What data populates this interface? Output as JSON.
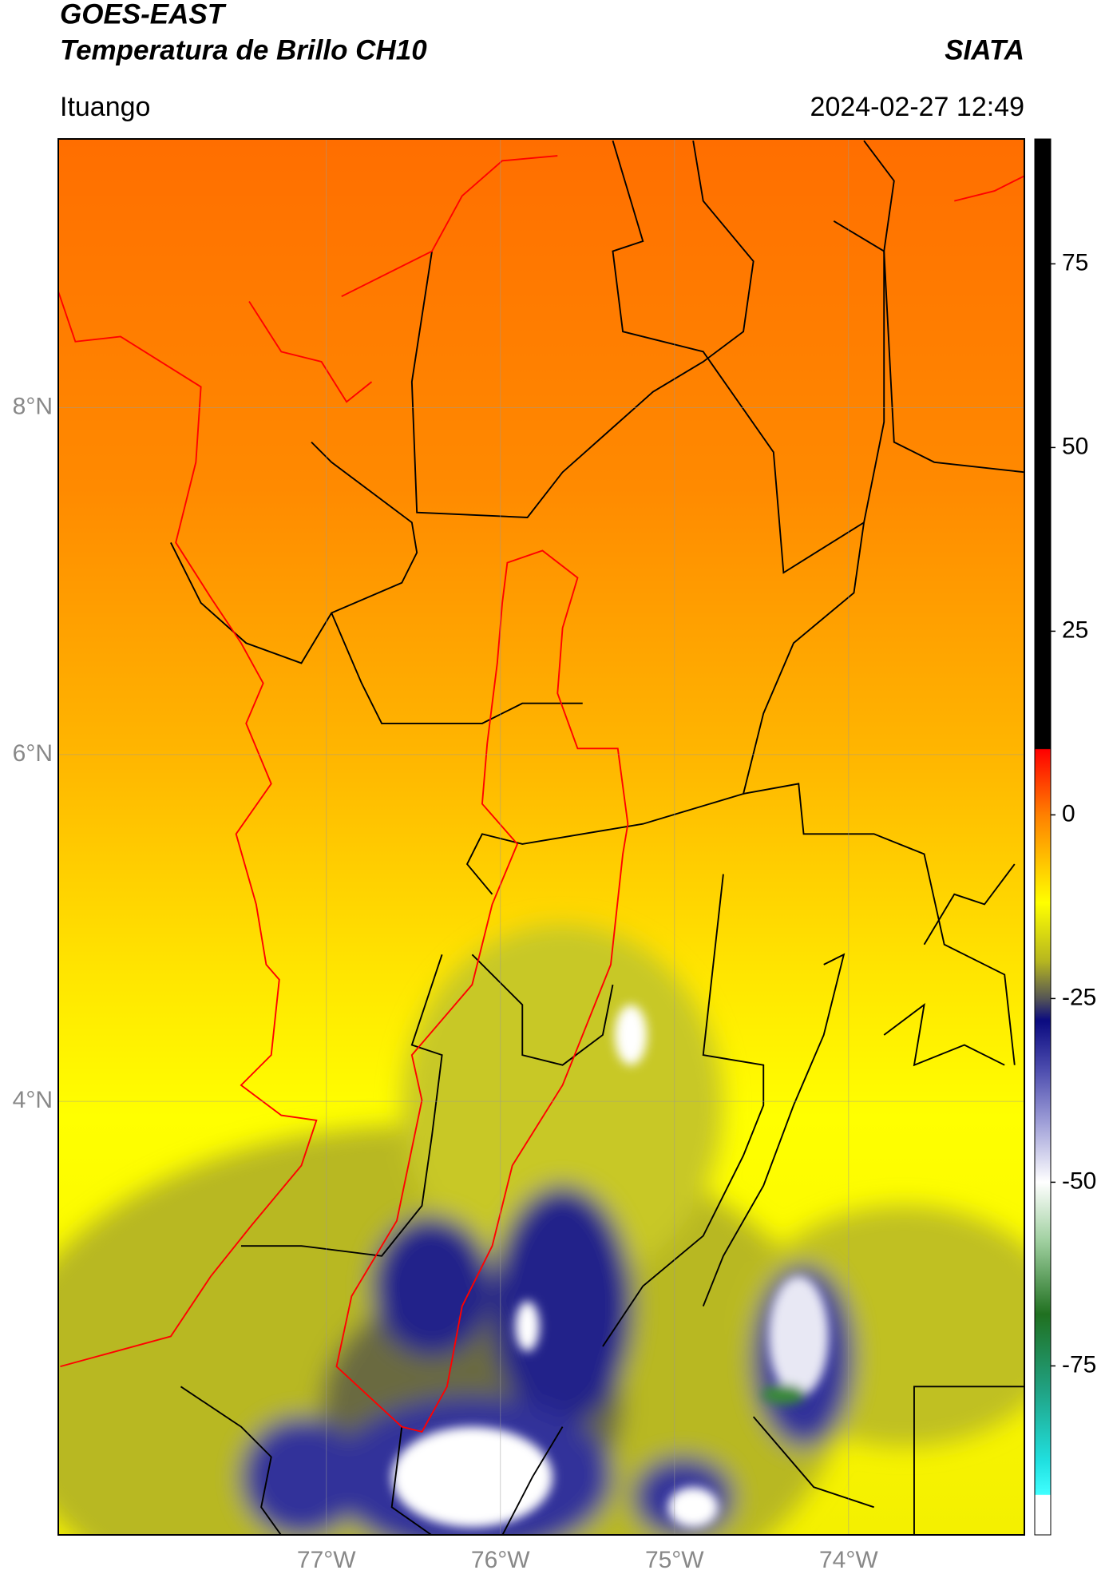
{
  "header": {
    "title": "GOES-EAST",
    "subtitle": "Temperatura de Brillo CH10",
    "source": "SIATA",
    "place": "Ituango",
    "datetime": "2024-02-27 12:49"
  },
  "map": {
    "xlim": [
      -78.54,
      -72.99
    ],
    "ylim": [
      1.5,
      9.55
    ],
    "xticks": [
      {
        "value": -77,
        "label": "77°W"
      },
      {
        "value": -76,
        "label": "76°W"
      },
      {
        "value": -75,
        "label": "75°W"
      },
      {
        "value": -74,
        "label": "74°W"
      }
    ],
    "yticks": [
      {
        "value": 8,
        "label": "8°N"
      },
      {
        "value": 6,
        "label": "6°N"
      },
      {
        "value": 4,
        "label": "4°N"
      }
    ],
    "grid": true
  },
  "colorbar": {
    "lim": [
      -98,
      92
    ],
    "ticks": [
      75,
      50,
      25,
      0,
      -25,
      -50,
      -75
    ],
    "colormap": [
      {
        "value": 92,
        "color": "#000000"
      },
      {
        "value": 9,
        "color": "#000000"
      },
      {
        "value": 8.9,
        "color": "#ff0000"
      },
      {
        "value": 0,
        "color": "#ff8000"
      },
      {
        "value": -12,
        "color": "#ffff00"
      },
      {
        "value": -20,
        "color": "#b5b520"
      },
      {
        "value": -25,
        "color": "#555555"
      },
      {
        "value": -28,
        "color": "#0a0a80"
      },
      {
        "value": -35,
        "color": "#5050b0"
      },
      {
        "value": -42,
        "color": "#a0a0d8"
      },
      {
        "value": -50,
        "color": "#ffffff"
      },
      {
        "value": -58,
        "color": "#a0d0a0"
      },
      {
        "value": -68,
        "color": "#207020"
      },
      {
        "value": -78,
        "color": "#20a080"
      },
      {
        "value": -88,
        "color": "#20e0e0"
      },
      {
        "value": -92.5,
        "color": "#40ffff"
      },
      {
        "value": -92.6,
        "color": "#ffffff"
      },
      {
        "value": -98,
        "color": "#ffffff"
      }
    ]
  }
}
